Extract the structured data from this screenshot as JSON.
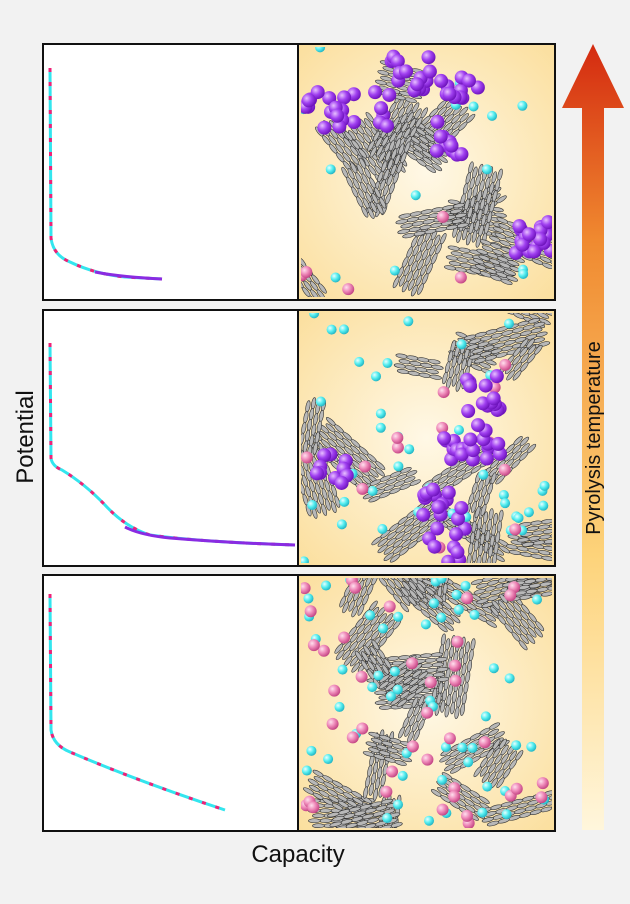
{
  "labels": {
    "y_axis": "Potential",
    "x_axis": "Capacity",
    "arrow": "Pyrolysis temperature"
  },
  "colors": {
    "background": "#f2f2f2",
    "panel_fill": "#fbe6b4",
    "curve_cyan": "#33e5ee",
    "curve_pink": "#ee2277",
    "curve_purple": "#8a2be2",
    "sphere_purple": "#a040f0",
    "sphere_cyan": "#55eef0",
    "sphere_pink": "#ee88b8",
    "graphene": "#b8b8b8",
    "arrow_top": "#d42a10",
    "arrow_bottom": "#fff6dc"
  },
  "rows": [
    {
      "level": "high",
      "purple_clusters": 7,
      "cyan_ions": 14,
      "pink_ions": 5
    },
    {
      "level": "medium",
      "purple_clusters": 6,
      "cyan_ions": 40,
      "pink_ions": 14
    },
    {
      "level": "low",
      "purple_clusters": 0,
      "cyan_ions": 55,
      "pink_ions": 40
    }
  ]
}
